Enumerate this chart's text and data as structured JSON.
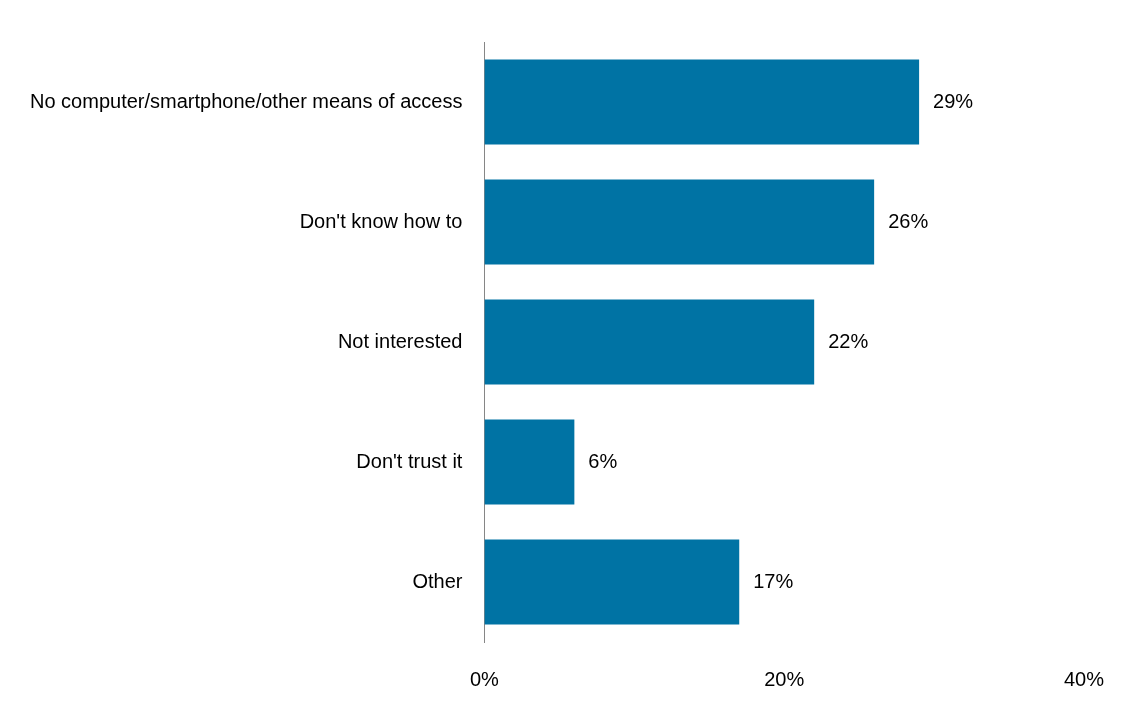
{
  "chart_data": {
    "type": "bar",
    "orientation": "horizontal",
    "categories": [
      "No computer/smartphone/other means of access",
      "Don't know how to",
      "Not interested",
      "Don't trust it",
      "Other"
    ],
    "values": [
      29,
      26,
      22,
      6,
      17
    ],
    "value_labels": [
      "29%",
      "26%",
      "22%",
      "6%",
      "17%"
    ],
    "color": "#0073a4",
    "xlim": [
      0,
      40
    ],
    "xticks": [
      {
        "value": 0,
        "label": "0%"
      },
      {
        "value": 20,
        "label": "20%"
      },
      {
        "value": 40,
        "label": "40%"
      }
    ],
    "grid": false,
    "legend": false
  }
}
